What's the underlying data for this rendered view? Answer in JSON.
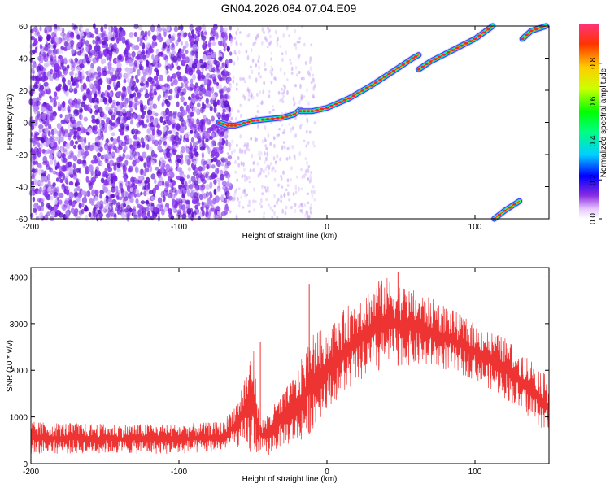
{
  "title": "GN04.2026.084.07.04.E09",
  "chart_data": [
    {
      "type": "heatmap",
      "xlabel": "Height of straight line (km)",
      "ylabel": "Frequency (Hz)",
      "xlim": [
        -200,
        150
      ],
      "ylim": [
        -60,
        60
      ],
      "x_ticks": [
        -200,
        -100,
        0,
        100
      ],
      "y_ticks": [
        -60,
        -40,
        -20,
        0,
        20,
        40,
        60
      ],
      "colorbar": {
        "label": "Normalized spectral amplitude",
        "range": [
          0,
          1
        ],
        "ticks": [
          "0.0",
          "0.2",
          "0.4",
          "0.6",
          "0.8"
        ]
      },
      "ridge": {
        "description_points": [
          {
            "x": -72,
            "y": 0
          },
          {
            "x": -62,
            "y": -2
          },
          {
            "x": -40,
            "y": 2
          },
          {
            "x": -20,
            "y": 7
          },
          {
            "x": 0,
            "y": 8
          },
          {
            "x": 20,
            "y": 16
          },
          {
            "x": 40,
            "y": 28
          },
          {
            "x": 62,
            "y": 42
          },
          {
            "x": 62,
            "y": 33
          },
          {
            "x": 80,
            "y": 43
          },
          {
            "x": 100,
            "y": 52
          },
          {
            "x": 112,
            "y": 60
          },
          {
            "x": 113,
            "y": -60
          },
          {
            "x": 130,
            "y": -48
          },
          {
            "x": 132,
            "y": 52
          },
          {
            "x": 148,
            "y": 60
          }
        ]
      }
    },
    {
      "type": "line",
      "xlabel": "Height of straight line (km)",
      "ylabel": "SNR (10 * v/v)",
      "xlim": [
        -200,
        150
      ],
      "ylim": [
        0,
        4200
      ],
      "x_ticks": [
        -200,
        -100,
        0,
        100
      ],
      "y_ticks": [
        0,
        1000,
        2000,
        3000,
        4000
      ],
      "series": [
        {
          "color": "#ee3333",
          "envelope_x": [
            -200,
            -150,
            -100,
            -70,
            -60,
            -50,
            -45,
            -40,
            -30,
            -20,
            -10,
            0,
            20,
            40,
            60,
            80,
            100,
            120,
            140,
            150
          ],
          "envelope_lo": [
            200,
            220,
            200,
            250,
            350,
            100,
            300,
            150,
            400,
            400,
            700,
            1200,
            1700,
            2100,
            2100,
            2000,
            1800,
            1400,
            900,
            600
          ],
          "envelope_hi": [
            900,
            850,
            850,
            900,
            1400,
            2600,
            900,
            1100,
            1500,
            2000,
            2800,
            2900,
            3600,
            4000,
            3700,
            3400,
            3000,
            2700,
            2200,
            1800
          ],
          "spikes": [
            {
              "x": -45,
              "y": 2600
            },
            {
              "x": -12,
              "y": 3850
            },
            {
              "x": 48,
              "y": 4100
            },
            {
              "x": 35,
              "y": 3900
            }
          ]
        }
      ]
    }
  ]
}
